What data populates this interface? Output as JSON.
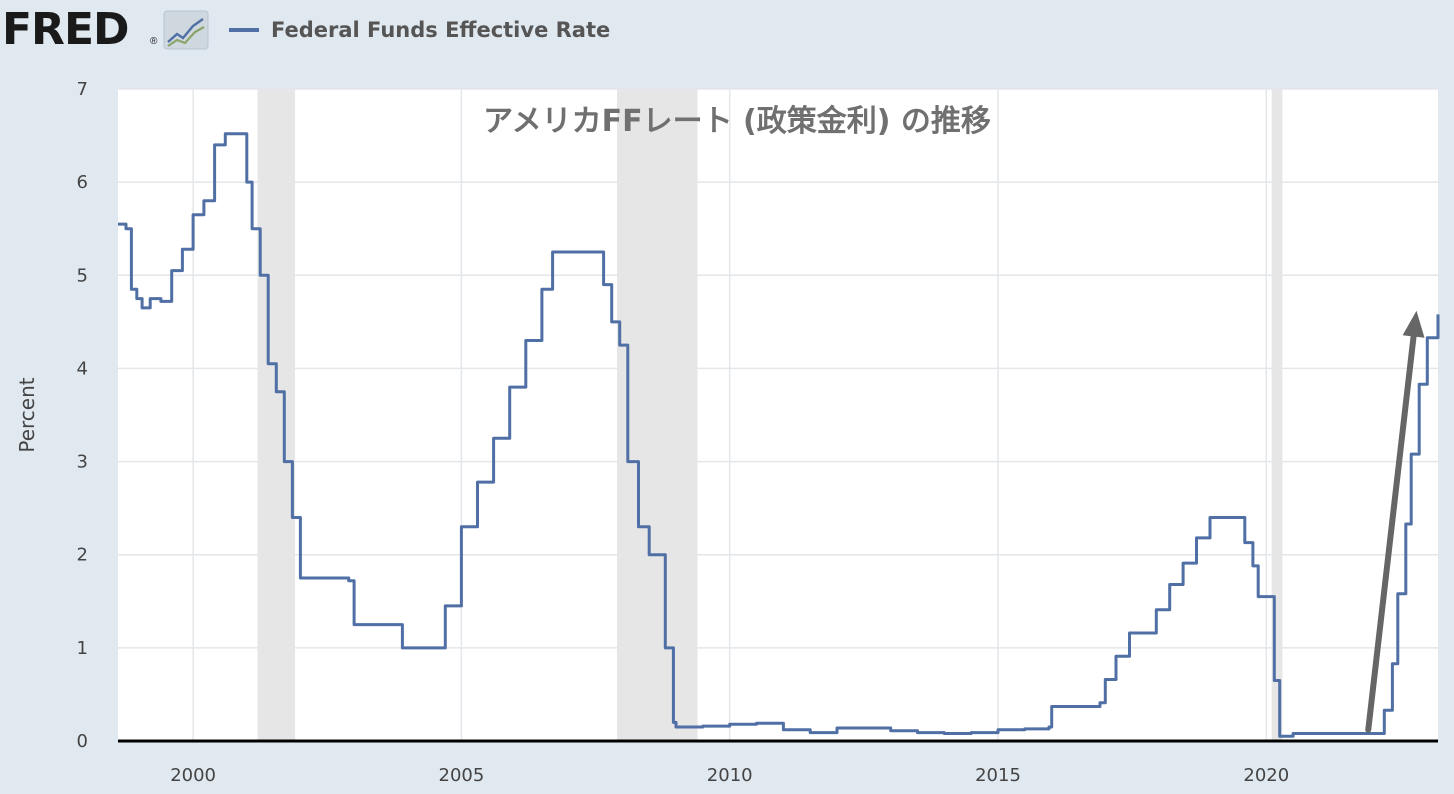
{
  "header": {
    "logo_text": "FRED",
    "logo_mark": "®",
    "logo_icon": "line-graph-icon",
    "legend_label": "Federal Funds Effective Rate"
  },
  "colors": {
    "series": "#4f6fa5",
    "recession": "#e6e6e6",
    "grid": "#e3e6ea",
    "page_background": "#e1e9f0",
    "plot_background": "#ffffff",
    "arrow": "#666666"
  },
  "chart_data": {
    "type": "line",
    "title": "アメリカFFレート (政策金利) の推移",
    "xlabel": "",
    "ylabel": "Percent",
    "xlim": [
      1998.6,
      2023.2
    ],
    "ylim": [
      0,
      7
    ],
    "xticks": [
      "2000",
      "2005",
      "2010",
      "2015",
      "2020"
    ],
    "yticks": [
      "0",
      "1",
      "2",
      "3",
      "4",
      "5",
      "6",
      "7"
    ],
    "grid": true,
    "legend_placement": "top-left",
    "recessions": [
      {
        "start": 2001.2,
        "end": 2001.9
      },
      {
        "start": 2007.9,
        "end": 2009.4
      },
      {
        "start": 2020.1,
        "end": 2020.3
      }
    ],
    "annotation": {
      "type": "arrow",
      "from": {
        "x": 2021.9,
        "y": 0.12
      },
      "to": {
        "x": 2022.8,
        "y": 4.62
      }
    },
    "series": [
      {
        "name": "Federal Funds Effective Rate",
        "x": [
          1998.6,
          1998.75,
          1998.85,
          1998.95,
          1999.05,
          1999.2,
          1999.4,
          1999.6,
          1999.8,
          2000.0,
          2000.2,
          2000.4,
          2000.6,
          2000.8,
          2001.0,
          2001.1,
          2001.25,
          2001.4,
          2001.55,
          2001.7,
          2001.85,
          2002.0,
          2002.5,
          2002.9,
          2003.0,
          2003.5,
          2003.9,
          2004.0,
          2004.45,
          2004.7,
          2005.0,
          2005.3,
          2005.6,
          2005.9,
          2006.2,
          2006.5,
          2006.7,
          2007.0,
          2007.5,
          2007.65,
          2007.8,
          2007.95,
          2008.1,
          2008.3,
          2008.5,
          2008.8,
          2008.95,
          2009.0,
          2009.5,
          2010.0,
          2010.5,
          2011.0,
          2011.5,
          2012.0,
          2012.5,
          2013.0,
          2013.5,
          2014.0,
          2014.5,
          2015.0,
          2015.5,
          2015.95,
          2016.0,
          2016.9,
          2017.0,
          2017.2,
          2017.45,
          2017.95,
          2018.2,
          2018.45,
          2018.7,
          2018.95,
          2019.5,
          2019.6,
          2019.75,
          2019.85,
          2020.0,
          2020.15,
          2020.25,
          2020.3,
          2020.5,
          2021.0,
          2021.5,
          2022.0,
          2022.2,
          2022.35,
          2022.45,
          2022.6,
          2022.7,
          2022.85,
          2023.0,
          2023.1,
          2023.2
        ],
        "values": [
          5.55,
          5.5,
          4.85,
          4.75,
          4.65,
          4.75,
          4.72,
          5.05,
          5.28,
          5.65,
          5.8,
          6.4,
          6.52,
          6.52,
          6.0,
          5.5,
          5.0,
          4.05,
          3.75,
          3.0,
          2.4,
          1.75,
          1.75,
          1.72,
          1.25,
          1.25,
          1.0,
          1.0,
          1.0,
          1.45,
          2.3,
          2.78,
          3.25,
          3.8,
          4.3,
          4.85,
          5.25,
          5.25,
          5.25,
          4.9,
          4.5,
          4.25,
          3.0,
          2.3,
          2.0,
          1.0,
          0.2,
          0.15,
          0.16,
          0.18,
          0.19,
          0.12,
          0.09,
          0.14,
          0.14,
          0.11,
          0.09,
          0.08,
          0.09,
          0.12,
          0.13,
          0.15,
          0.37,
          0.41,
          0.66,
          0.91,
          1.16,
          1.41,
          1.68,
          1.91,
          2.18,
          2.4,
          2.4,
          2.13,
          1.88,
          1.55,
          1.55,
          0.65,
          0.05,
          0.05,
          0.08,
          0.08,
          0.08,
          0.08,
          0.33,
          0.83,
          1.58,
          2.33,
          3.08,
          3.83,
          4.33,
          4.33,
          4.58
        ]
      }
    ]
  }
}
